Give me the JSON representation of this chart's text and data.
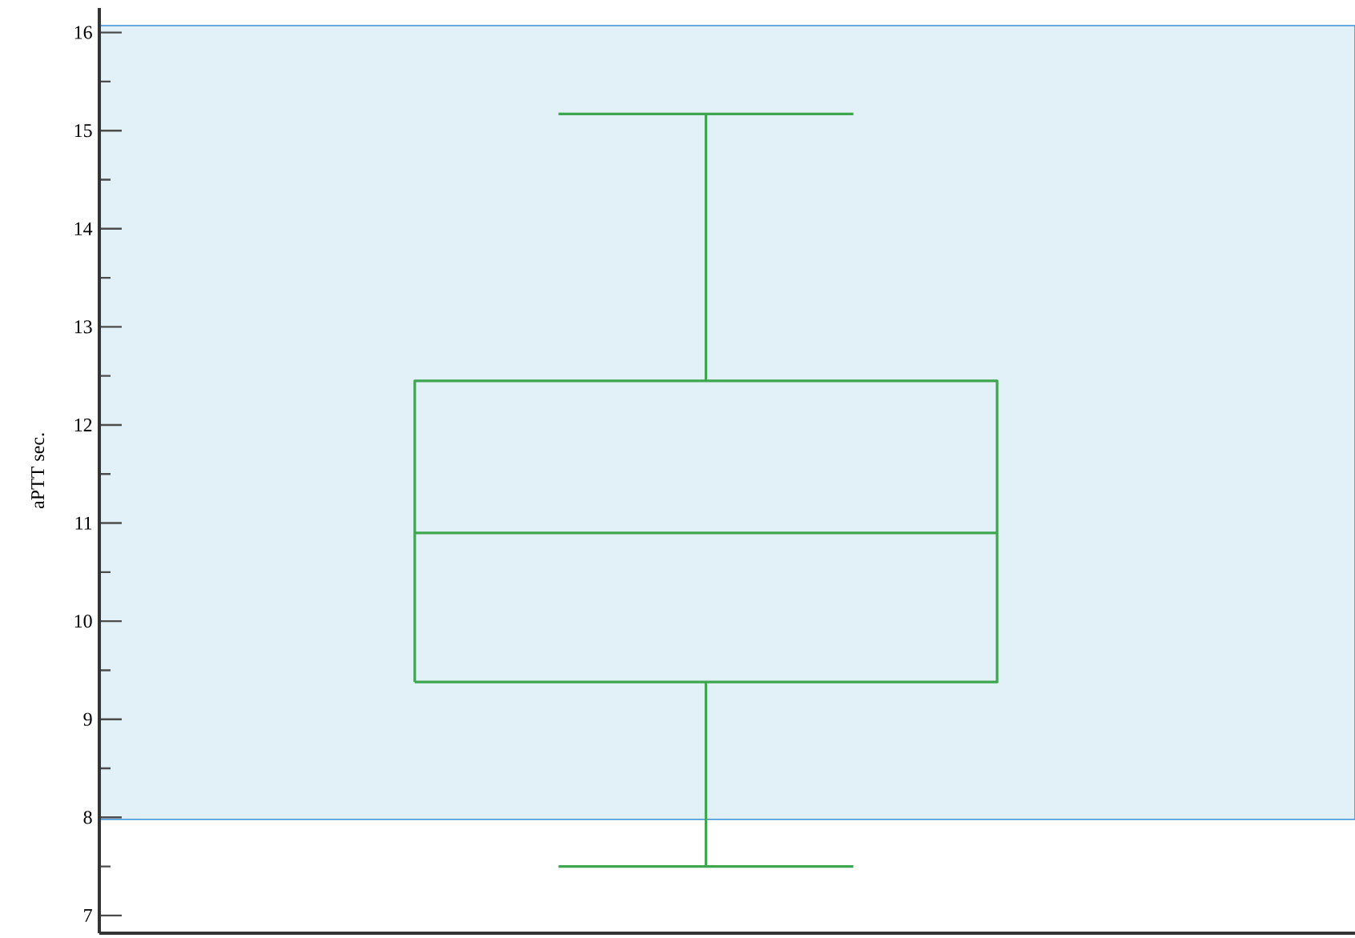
{
  "chart_data": {
    "type": "box",
    "ylabel": "aPTT sec.",
    "categories": [
      null
    ],
    "boxes": [
      {
        "low": 7.5,
        "q1": 9.38,
        "median": 10.9,
        "q3": 12.45,
        "high": 15.17
      }
    ],
    "color": "#3da64f",
    "ylim": [
      6.82,
      16.25
    ],
    "yticks": [
      7,
      {
        "value": 7.5,
        "label": null
      },
      8,
      {
        "value": 8.5,
        "label": null
      },
      9,
      {
        "value": 9.5,
        "label": null
      },
      10,
      {
        "value": 10.5,
        "label": null
      },
      11,
      {
        "value": 11.5,
        "label": null
      },
      12,
      {
        "value": 12.5,
        "label": null
      },
      13,
      {
        "value": 13.5,
        "label": null
      },
      14,
      {
        "value": 14.5,
        "label": null
      },
      15,
      {
        "value": 15.5,
        "label": null
      },
      16
    ],
    "bands": [
      {
        "axis": "y",
        "from": 7.98,
        "to": 16.07,
        "color": "#e2f1f7"
      }
    ]
  }
}
